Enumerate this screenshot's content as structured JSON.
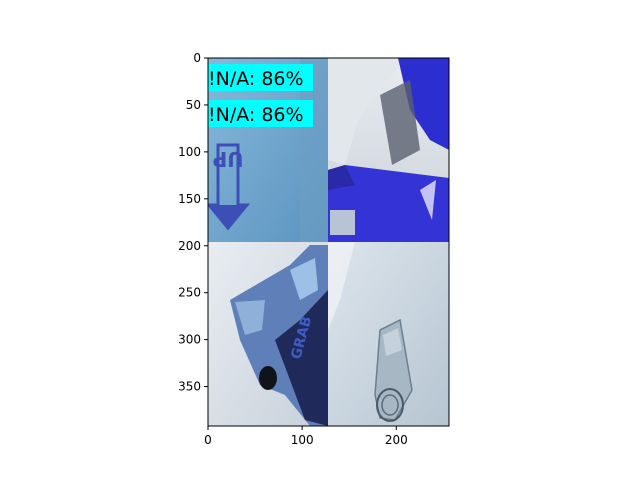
{
  "chart_data": {
    "type": "image",
    "xlim": [
      0,
      256
    ],
    "ylim": [
      392,
      0
    ],
    "xticks": [
      0,
      100,
      200
    ],
    "yticks": [
      0,
      50,
      100,
      150,
      200,
      250,
      300,
      350
    ],
    "tiles": [
      {
        "name": "tile-blue-paper-up-arrow",
        "colors": [
          "#7fb2d6",
          "#5f98c4"
        ]
      },
      {
        "name": "tile-blue-bag",
        "colors": [
          "#3030c8",
          "#dfe6ea"
        ]
      },
      {
        "name": "tile-crumpled-wrapper",
        "colors": [
          "#6f90c0",
          "#e4e9ee"
        ]
      },
      {
        "name": "tile-glass-bottle",
        "colors": [
          "#c9d6e2",
          "#7f98ac"
        ]
      }
    ],
    "detections": [
      {
        "label": "!N/A: 86%",
        "ocr": "UP",
        "box_color": "#00ffff"
      },
      {
        "label": "!N/A: 86%",
        "box_color": "#00ffff"
      }
    ]
  }
}
